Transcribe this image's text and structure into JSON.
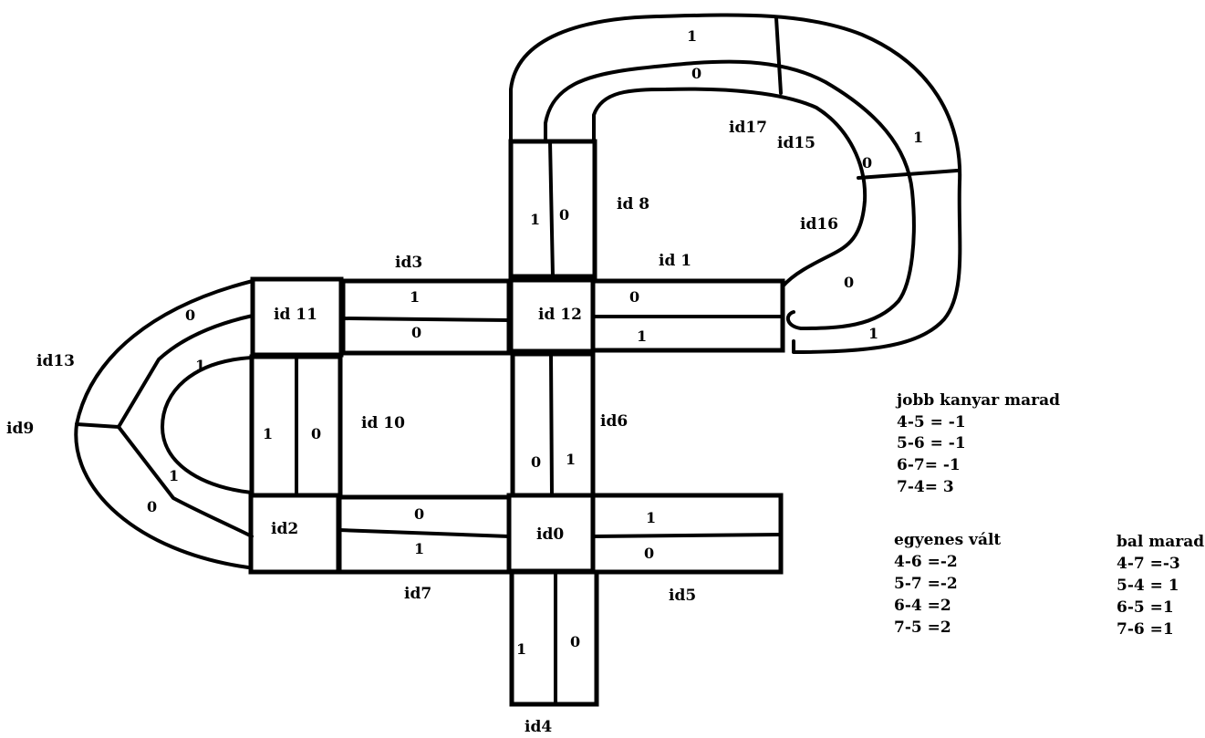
{
  "nodes": {
    "id0": "id0",
    "id1": "id 1",
    "id2": "id2",
    "id3": "id3",
    "id4": "id4",
    "id5": "id5",
    "id6": "id6",
    "id7": "id7",
    "id8": "id 8",
    "id9": "id9",
    "id10": "id 10",
    "id11": "id 11",
    "id12": "id 12",
    "id13": "id13",
    "id15": "id15",
    "id16": "id16",
    "id17": "id17"
  },
  "lanes": {
    "id3_top": "1",
    "id3_bottom": "0",
    "id1_top": "0",
    "id1_bottom": "1",
    "id7_top": "0",
    "id7_bottom": "1",
    "id5_top": "1",
    "id5_bottom": "0",
    "id8_left": "1",
    "id8_right": "0",
    "id6_left": "0",
    "id6_right": "1",
    "id4_left": "1",
    "id4_right": "0",
    "id10_left": "1",
    "id10_right": "0",
    "loop_outer_top": "1",
    "loop_inner_top": "0",
    "loop_outer_right": "1",
    "loop_inner_right": "0",
    "loop_inner_bottom": "0",
    "loop_outer_bottom": "1",
    "id13_outer": "0",
    "id13_inner": "1",
    "id9_inner": "1",
    "id9_outer": "0"
  },
  "notes": {
    "jobb_title": "jobb kanyar marad",
    "jobb": [
      "4-5 = -1",
      "5-6 = -1",
      "6-7= -1",
      "7-4= 3"
    ],
    "egyenes_title": "egyenes vált",
    "egyenes": [
      "4-6 =-2",
      "5-7 =-2",
      "6-4 =2",
      "7-5 =2"
    ],
    "bal_title": "bal marad",
    "bal": [
      "4-7 =-3",
      "5-4 = 1",
      "6-5 =1",
      "7-6 =1"
    ]
  }
}
